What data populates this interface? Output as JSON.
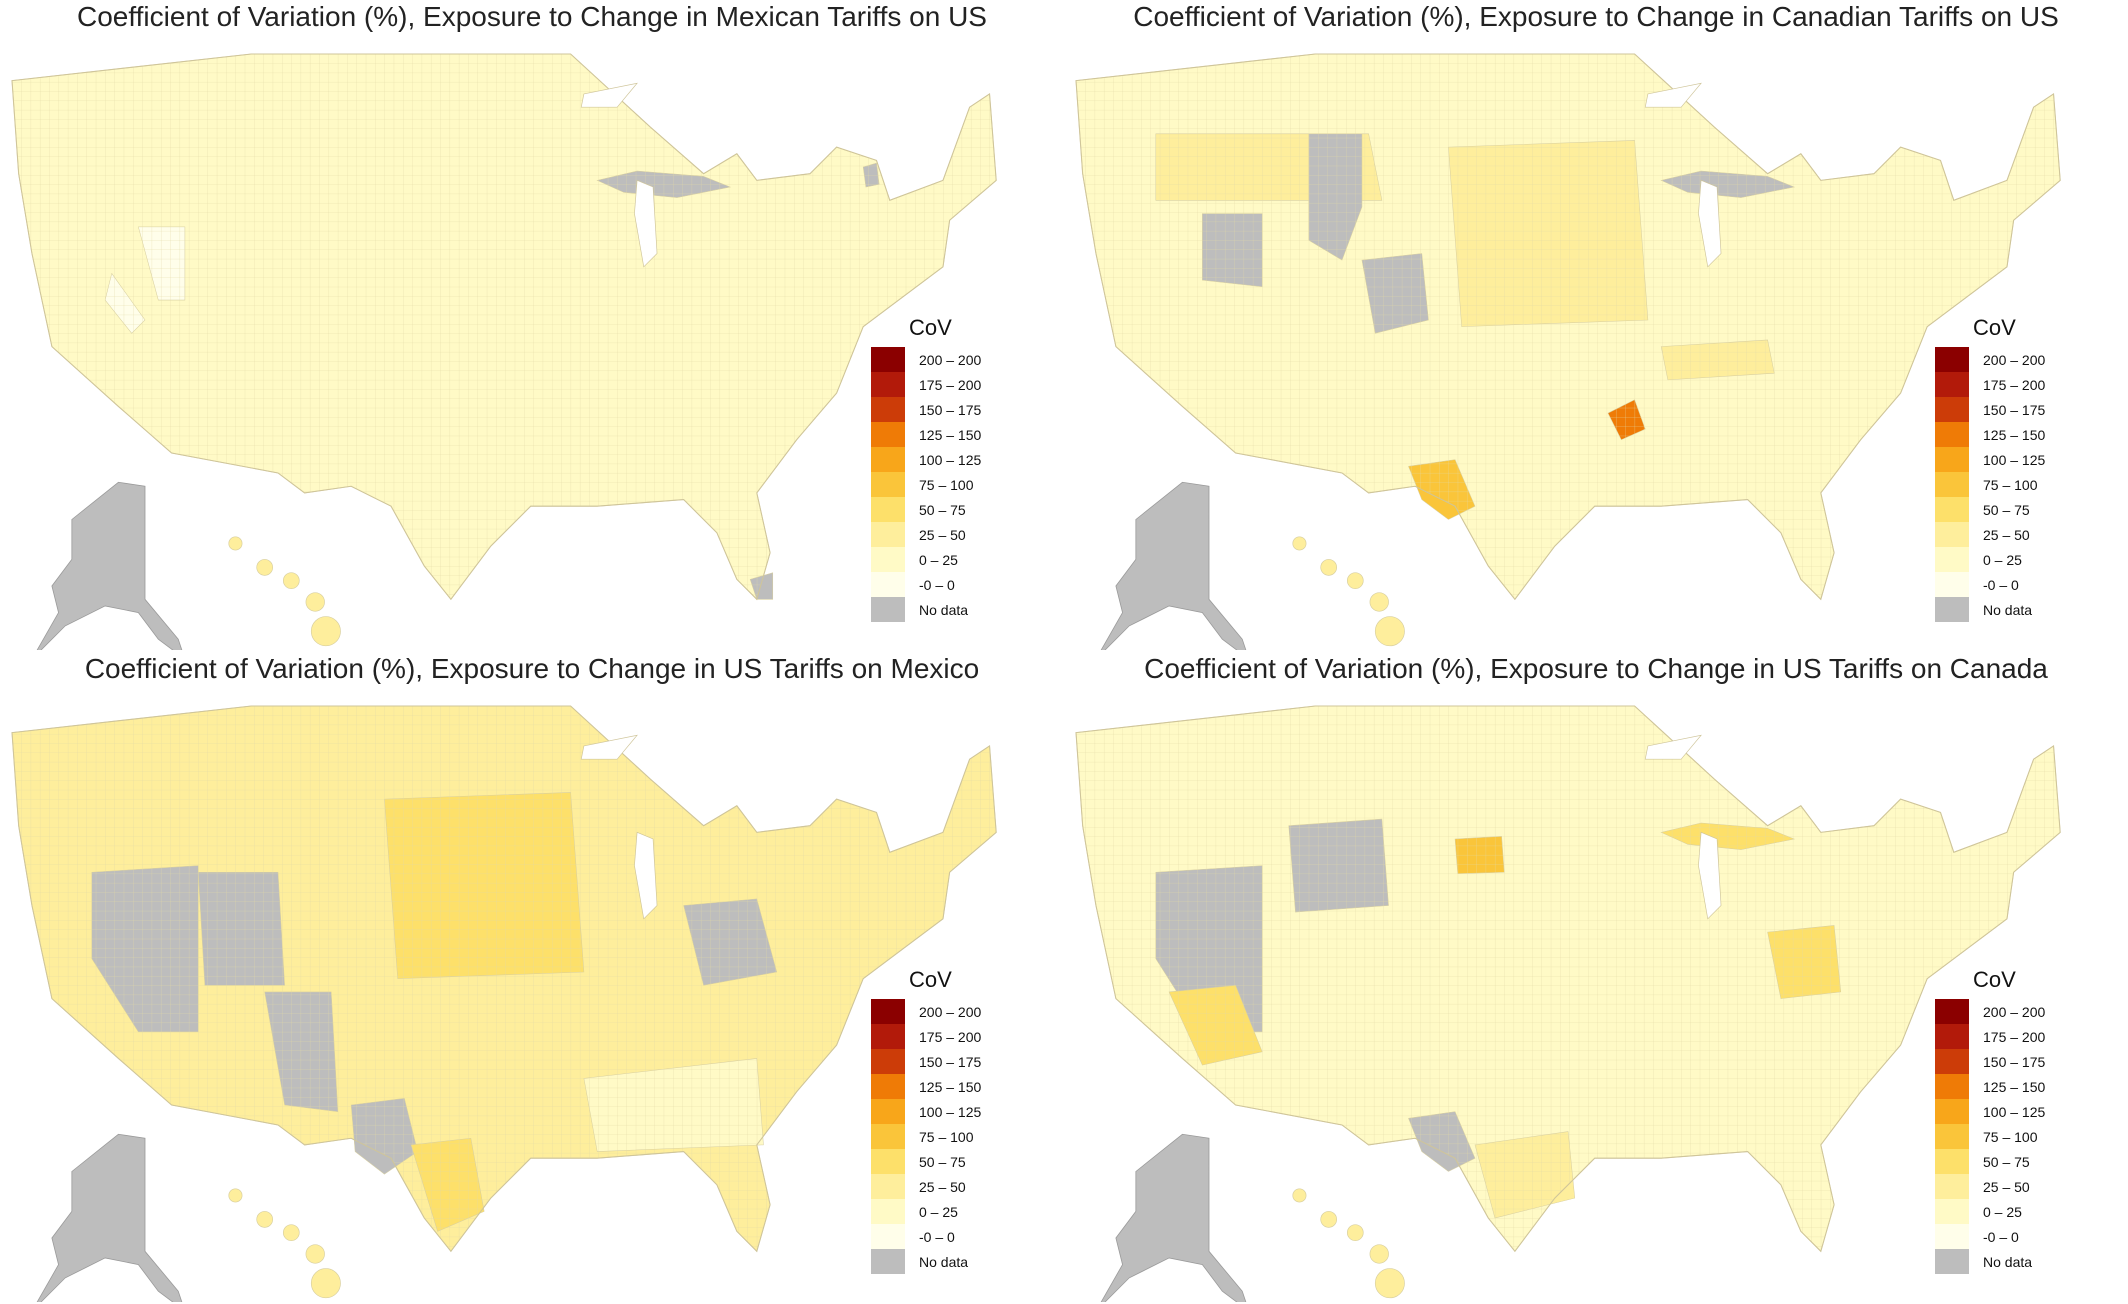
{
  "legend": {
    "title": "CoV",
    "classes": [
      {
        "label": "200 – 200",
        "color": "#8b0000"
      },
      {
        "label": "175 – 200",
        "color": "#b21a0a"
      },
      {
        "label": "150 – 175",
        "color": "#cc3c08"
      },
      {
        "label": "125 – 150",
        "color": "#ef7b06"
      },
      {
        "label": "100 – 125",
        "color": "#f8a61a"
      },
      {
        "label": "75 – 100",
        "color": "#fac53a"
      },
      {
        "label": "50 – 75",
        "color": "#fde06a"
      },
      {
        "label": "25 – 50",
        "color": "#feee9c"
      },
      {
        "label": "0 – 25",
        "color": "#fffac6"
      },
      {
        "label": "-0 – 0",
        "color": "#fffeea"
      },
      {
        "label": "No data",
        "color": "#bdbdbd"
      }
    ]
  },
  "panels": [
    {
      "title": "Coefficient of Variation (%), Exposure to Change in Mexican Tariffs on US",
      "base_class": "0 – 25",
      "regions": [
        {
          "name": "upper-michigan",
          "class": "No data"
        },
        {
          "name": "northern-maine",
          "class": "No data"
        },
        {
          "name": "southern-florida",
          "class": "No data"
        },
        {
          "name": "nevada-patch",
          "class": "-0 – 0"
        },
        {
          "name": "idaho-patch",
          "class": "-0 – 0"
        }
      ],
      "alaska_class": "No data",
      "hawaii_class": "25 – 50"
    },
    {
      "title": "Coefficient of Variation (%), Exposure to Change in Canadian Tariffs on US",
      "base_class": "0 – 25",
      "regions": [
        {
          "name": "montana-west",
          "class": "25 – 50"
        },
        {
          "name": "wyoming-central",
          "class": "No data"
        },
        {
          "name": "nevada-north",
          "class": "No data"
        },
        {
          "name": "colorado-west",
          "class": "No data"
        },
        {
          "name": "texas-west",
          "class": "75 – 100"
        },
        {
          "name": "arkansas-east",
          "class": "125 – 150"
        },
        {
          "name": "tennessee",
          "class": "25 – 50"
        },
        {
          "name": "upper-michigan",
          "class": "No data"
        },
        {
          "name": "great-plains",
          "class": "25 – 50"
        }
      ],
      "alaska_class": "No data",
      "hawaii_class": "25 – 50"
    },
    {
      "title": "Coefficient of Variation (%), Exposure to Change in US Tariffs on Mexico",
      "base_class": "25 – 50",
      "regions": [
        {
          "name": "nevada",
          "class": "No data"
        },
        {
          "name": "utah",
          "class": "No data"
        },
        {
          "name": "arizona-east",
          "class": "No data"
        },
        {
          "name": "west-texas",
          "class": "No data"
        },
        {
          "name": "texas-south",
          "class": "50 – 75"
        },
        {
          "name": "great-plains",
          "class": "50 – 75"
        },
        {
          "name": "mid-atlantic",
          "class": "No data"
        },
        {
          "name": "southeast",
          "class": "0 – 25"
        }
      ],
      "alaska_class": "No data",
      "hawaii_class": "25 – 50"
    },
    {
      "title": "Coefficient of Variation (%), Exposure to Change in US Tariffs on Canada",
      "base_class": "0 – 25",
      "regions": [
        {
          "name": "nevada",
          "class": "No data"
        },
        {
          "name": "southern-california",
          "class": "50 – 75"
        },
        {
          "name": "wyoming",
          "class": "No data"
        },
        {
          "name": "nebraska",
          "class": "75 – 100"
        },
        {
          "name": "texas-west",
          "class": "No data"
        },
        {
          "name": "texas-gulf",
          "class": "25 – 50"
        },
        {
          "name": "appalachia",
          "class": "50 – 75"
        },
        {
          "name": "upper-michigan",
          "class": "50 – 75"
        }
      ],
      "alaska_class": "No data",
      "hawaii_class": "25 – 50"
    }
  ]
}
